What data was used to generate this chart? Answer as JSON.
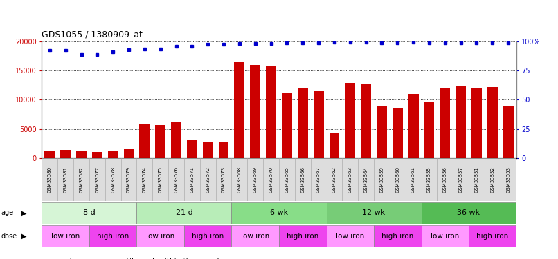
{
  "title": "GDS1055 / 1380909_at",
  "samples": [
    "GSM33580",
    "GSM33581",
    "GSM33582",
    "GSM33577",
    "GSM33578",
    "GSM33579",
    "GSM33574",
    "GSM33575",
    "GSM33576",
    "GSM33571",
    "GSM33572",
    "GSM33573",
    "GSM33568",
    "GSM33569",
    "GSM33570",
    "GSM33565",
    "GSM33566",
    "GSM33567",
    "GSM33562",
    "GSM33563",
    "GSM33564",
    "GSM33559",
    "GSM33560",
    "GSM33561",
    "GSM33555",
    "GSM33556",
    "GSM33557",
    "GSM33551",
    "GSM33552",
    "GSM33553"
  ],
  "counts": [
    1200,
    1400,
    1100,
    1050,
    1300,
    1500,
    5800,
    5700,
    6100,
    3100,
    2700,
    2800,
    16500,
    16000,
    15800,
    11100,
    12000,
    11500,
    4200,
    12900,
    12600,
    8900,
    8500,
    11000,
    9600,
    12100,
    12300,
    12100,
    12200,
    9000
  ],
  "percentile_y": [
    18500,
    18500,
    17800,
    17800,
    18200,
    18600,
    18700,
    18700,
    19200,
    19200,
    19500,
    19500,
    19700,
    19700,
    19700,
    19800,
    19800,
    19800,
    19900,
    19900,
    19900,
    19800,
    19800,
    19900,
    19800,
    19800,
    19800,
    19800,
    19800,
    19800
  ],
  "age_groups": [
    {
      "label": "8 d",
      "start": 0,
      "end": 6,
      "color": "#d6f5d6"
    },
    {
      "label": "21 d",
      "start": 6,
      "end": 12,
      "color": "#b8edb8"
    },
    {
      "label": "6 wk",
      "start": 12,
      "end": 18,
      "color": "#88dd88"
    },
    {
      "label": "12 wk",
      "start": 18,
      "end": 24,
      "color": "#77cc77"
    },
    {
      "label": "36 wk",
      "start": 24,
      "end": 30,
      "color": "#55bb55"
    }
  ],
  "dose_groups": [
    {
      "label": "low iron",
      "start": 0,
      "end": 3,
      "color": "#ff99ff"
    },
    {
      "label": "high iron",
      "start": 3,
      "end": 6,
      "color": "#ee44ee"
    },
    {
      "label": "low iron",
      "start": 6,
      "end": 9,
      "color": "#ff99ff"
    },
    {
      "label": "high iron",
      "start": 9,
      "end": 12,
      "color": "#ee44ee"
    },
    {
      "label": "low iron",
      "start": 12,
      "end": 15,
      "color": "#ff99ff"
    },
    {
      "label": "high iron",
      "start": 15,
      "end": 18,
      "color": "#ee44ee"
    },
    {
      "label": "low iron",
      "start": 18,
      "end": 21,
      "color": "#ff99ff"
    },
    {
      "label": "high iron",
      "start": 21,
      "end": 24,
      "color": "#ee44ee"
    },
    {
      "label": "low iron",
      "start": 24,
      "end": 27,
      "color": "#ff99ff"
    },
    {
      "label": "high iron",
      "start": 27,
      "end": 30,
      "color": "#ee44ee"
    }
  ],
  "bar_color": "#cc0000",
  "dot_color": "#0000cc",
  "ylim_left": [
    0,
    20000
  ],
  "ylim_right": [
    0,
    100
  ],
  "yticks_left": [
    0,
    5000,
    10000,
    15000,
    20000
  ],
  "yticks_right": [
    0,
    25,
    50,
    75,
    100
  ],
  "ytick_labels_right": [
    "0",
    "25",
    "50",
    "75",
    "100%"
  ],
  "background_color": "#ffffff",
  "label_box_color": "#dddddd",
  "label_box_edge": "#aaaaaa"
}
